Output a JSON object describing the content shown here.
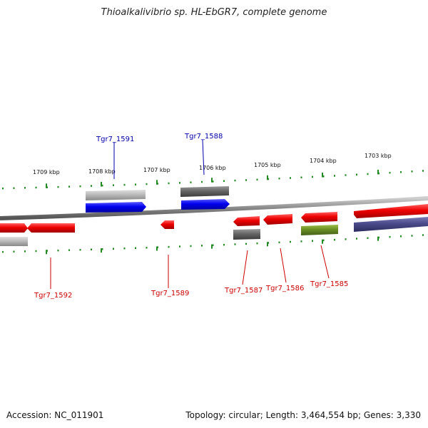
{
  "title": "Thioalkalivibrio sp. HL-EbGR7, complete genome",
  "footer": {
    "accession": "Accession: NC_011901",
    "summary": "Topology: circular; Length: 3,464,554 bp; Genes: 3,330"
  },
  "colors": {
    "forward_cds": "#0000ee",
    "reverse_cds": "#ee0000",
    "pseudo_light": "#bbbbbb",
    "pseudo_dark": "#666666",
    "olive_feature": "#6b8e23",
    "slate_feature": "#4a4a8a",
    "tick": "#228b22",
    "label_top": "#0000aa",
    "label_bottom": "#cc0000"
  },
  "scale_labels": [
    "1709 kbp",
    "1708 kbp",
    "1707 kbp",
    "1706 kbp",
    "1705 kbp",
    "1704 kbp",
    "1703 kbp"
  ],
  "gene_labels_top": [
    "Tgr7_1591",
    "Tgr7_1588"
  ],
  "gene_labels_bottom": [
    "Tgr7_1592",
    "Tgr7_1589",
    "Tgr7_1587",
    "Tgr7_1586",
    "Tgr7_1585"
  ]
}
